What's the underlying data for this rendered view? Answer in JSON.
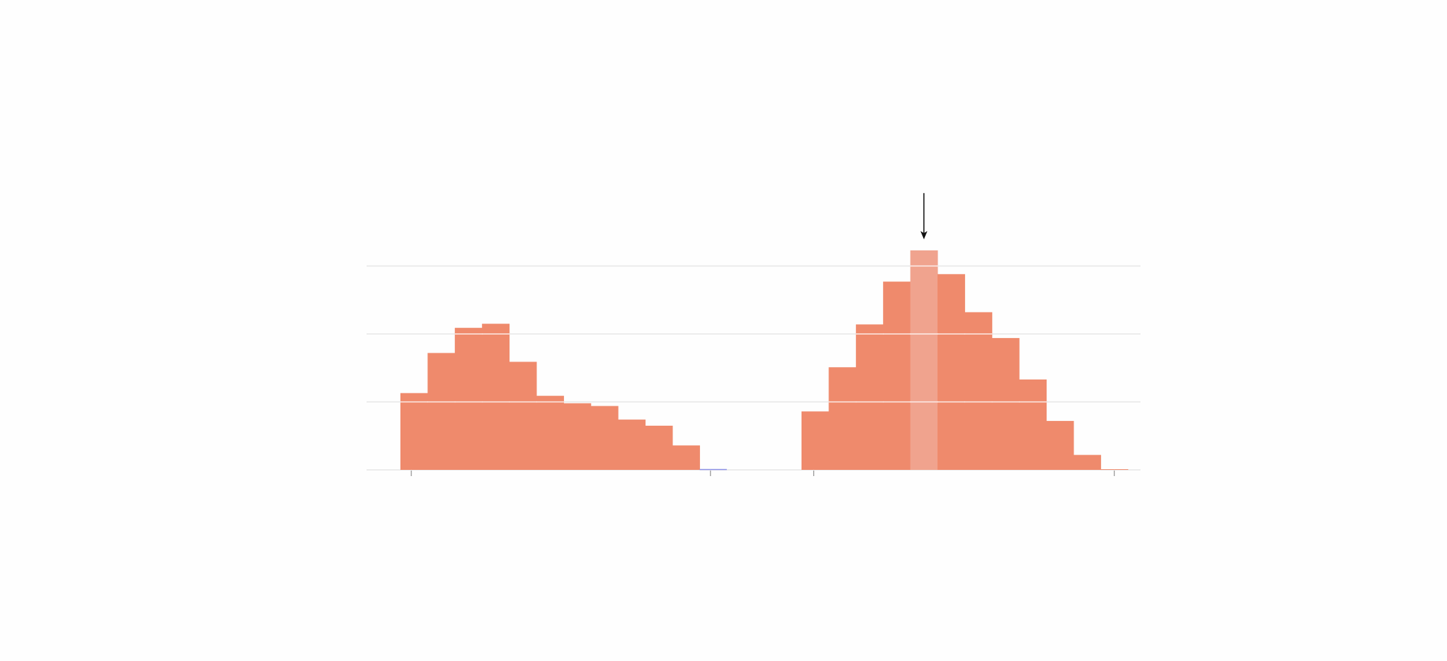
{
  "chart_data": [
    {
      "type": "bar",
      "subtype": "histogram",
      "title": "",
      "xlabel": "",
      "ylabel": "",
      "values": [
        1.13,
        1.72,
        2.09,
        2.15,
        1.59,
        1.09,
        0.98,
        0.94,
        0.74,
        0.65,
        0.36,
        0.0
      ],
      "zero_bin_color": "#8a8fe6",
      "color": "#ef8a6c",
      "ticks": [
        0.4,
        11.4
      ],
      "ylim": [
        0,
        3.3
      ],
      "gridlines": [
        0,
        1,
        2,
        3
      ],
      "grid": true
    },
    {
      "type": "bar",
      "subtype": "histogram",
      "title": "",
      "xlabel": "",
      "ylabel": "",
      "values": [
        0.86,
        1.51,
        2.14,
        2.77,
        3.23,
        2.88,
        2.32,
        1.94,
        1.33,
        0.72,
        0.22,
        0.01
      ],
      "color": "#ef8a6c",
      "highlight_index": 4,
      "highlight_color": "#f0a38e",
      "arrow_marker": "arrow-down-icon",
      "ticks": [
        0.45,
        11.5
      ],
      "ylim": [
        0,
        3.3
      ],
      "gridlines": [
        0,
        1,
        2,
        3
      ],
      "grid": true
    }
  ]
}
